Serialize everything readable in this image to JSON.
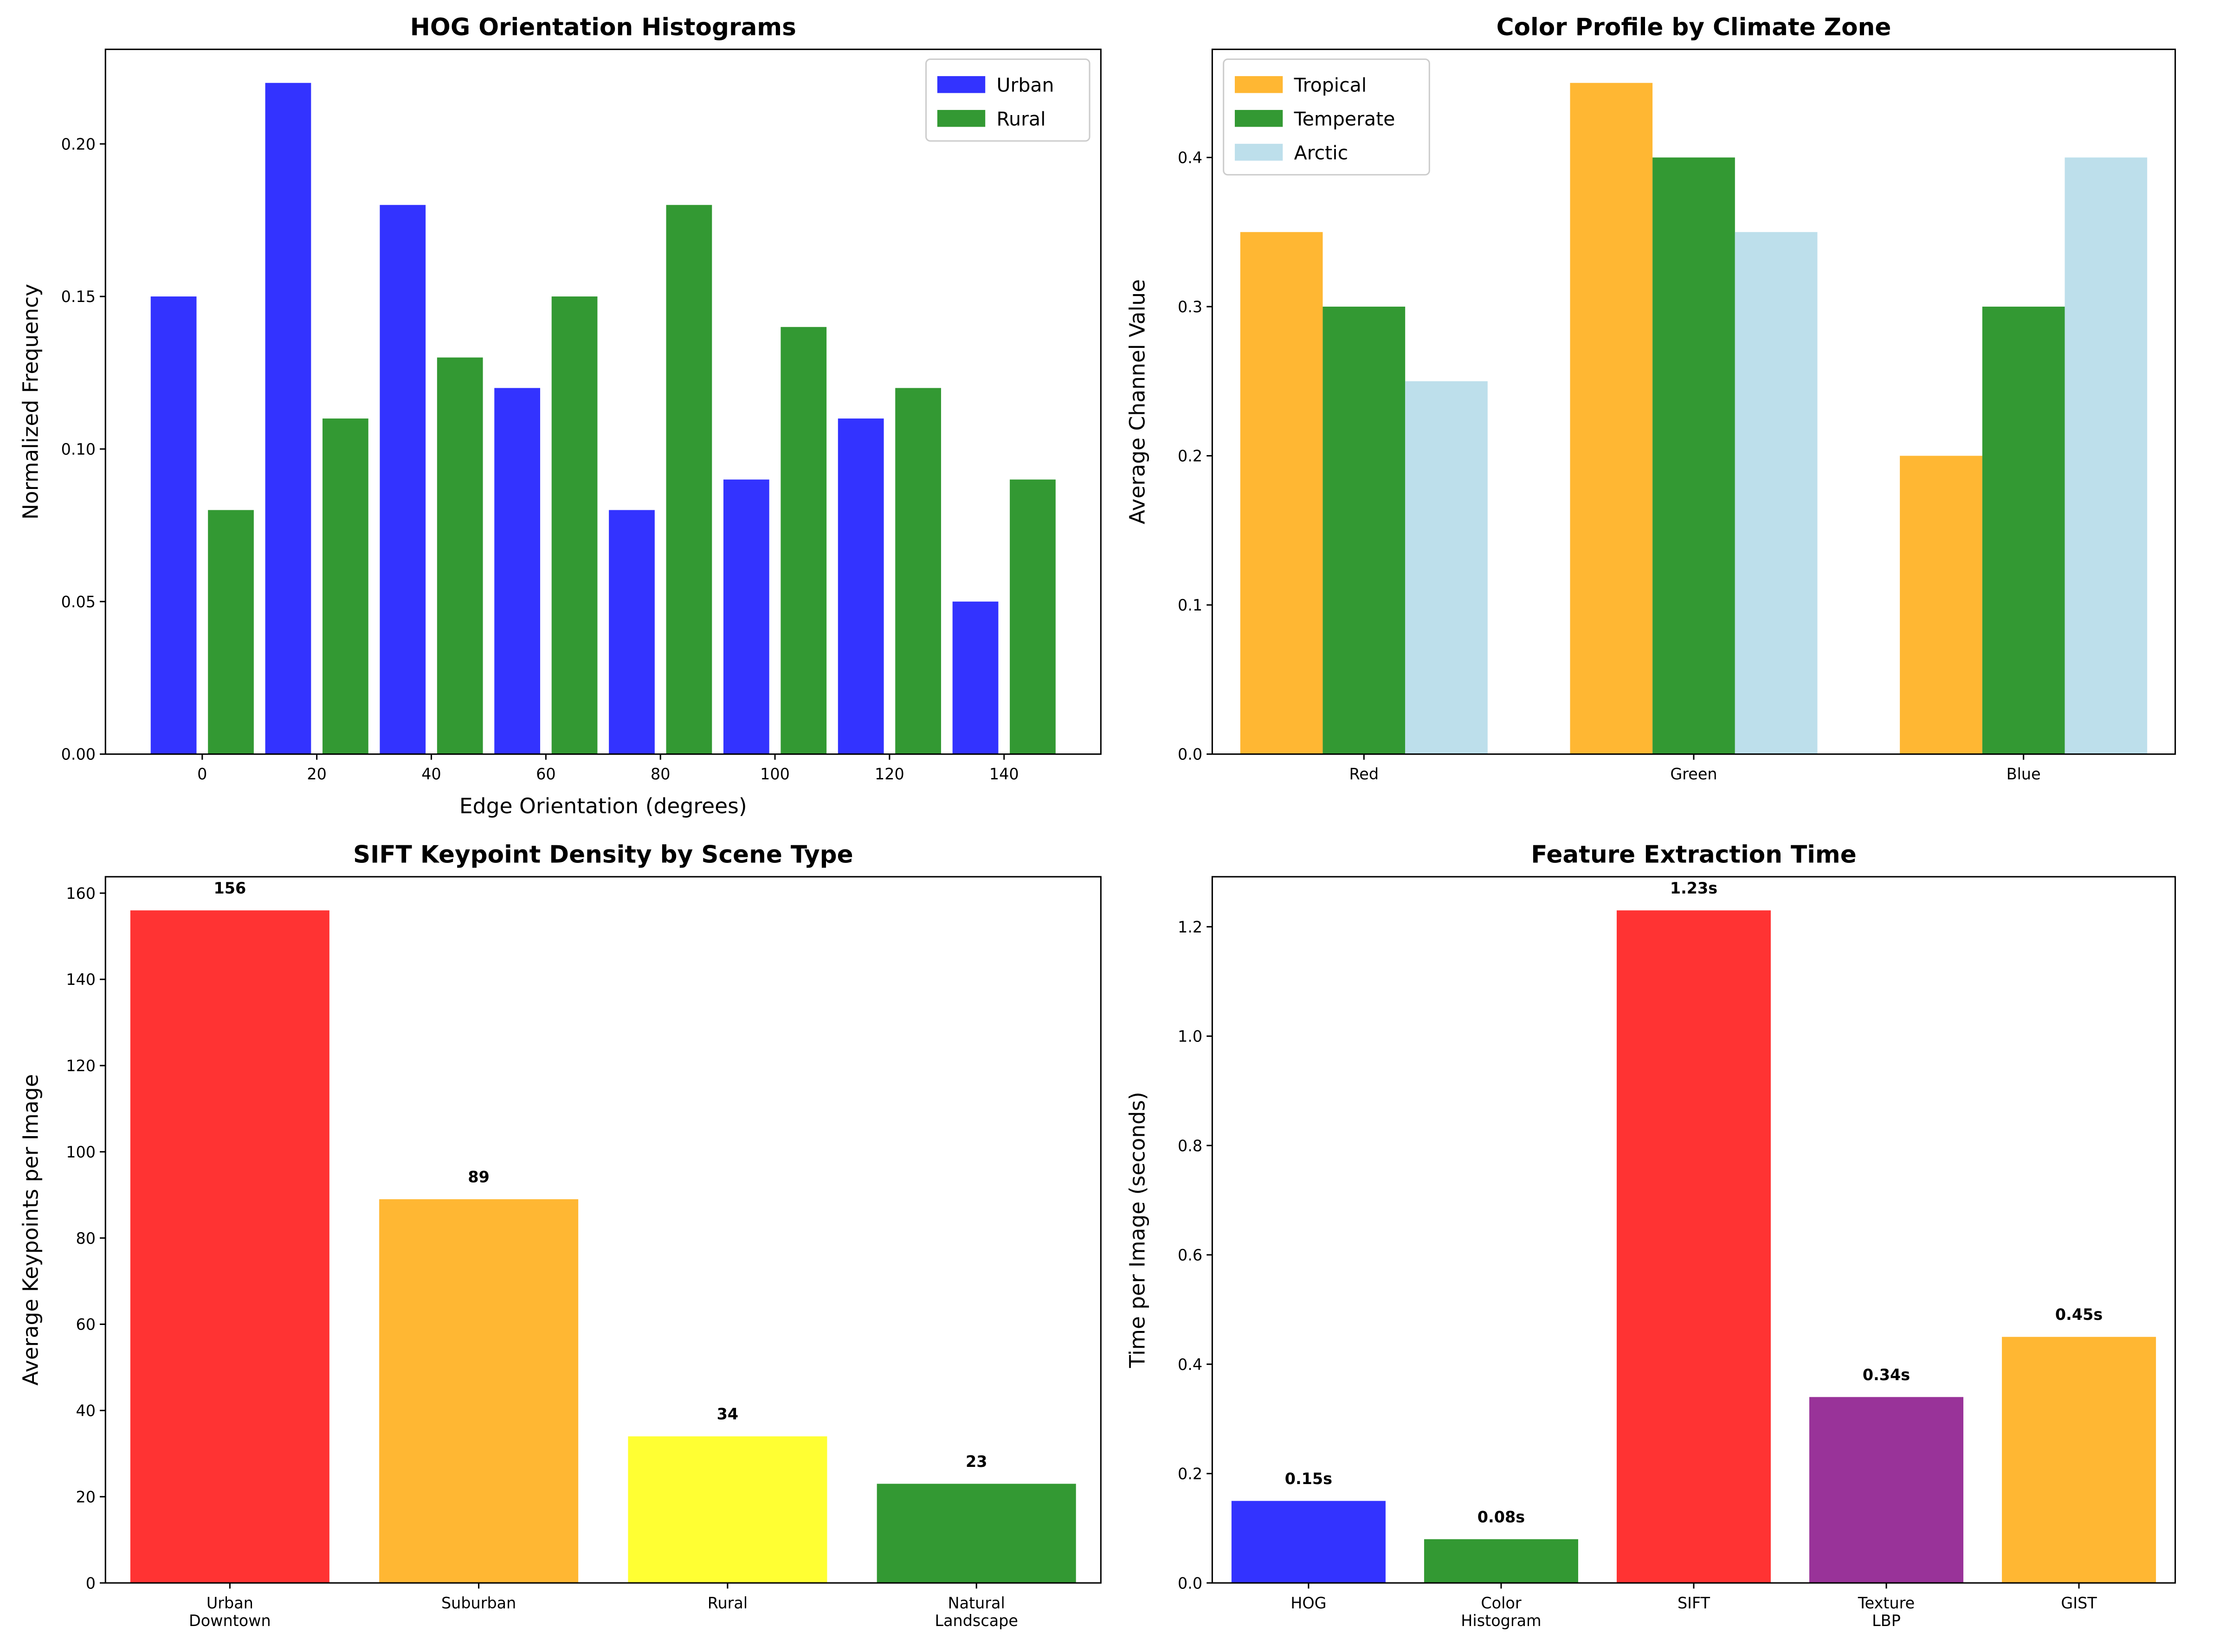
{
  "chart_data": [
    {
      "type": "bar",
      "title": "HOG Orientation Histograms",
      "xlabel": "Edge Orientation (degrees)",
      "ylabel": "Normalized Frequency",
      "x": [
        0,
        20,
        40,
        60,
        80,
        100,
        120,
        140
      ],
      "series": [
        {
          "name": "Urban",
          "color": "#3333ff",
          "values": [
            0.15,
            0.22,
            0.18,
            0.12,
            0.08,
            0.09,
            0.11,
            0.05
          ]
        },
        {
          "name": "Rural",
          "color": "#339933",
          "values": [
            0.08,
            0.11,
            0.13,
            0.15,
            0.18,
            0.14,
            0.12,
            0.09
          ]
        }
      ],
      "xlim": [
        -16.9,
        156.9
      ],
      "xticks": [
        0,
        20,
        40,
        60,
        80,
        100,
        120,
        140
      ],
      "ylim": [
        0,
        0.231
      ],
      "yticks": [
        {
          "value": 0,
          "label": "0.00"
        },
        {
          "value": 0.05,
          "label": "0.05"
        },
        {
          "value": 0.1,
          "label": "0.10"
        },
        {
          "value": 0.15,
          "label": "0.15"
        },
        {
          "value": 0.2,
          "label": "0.20"
        }
      ],
      "legend": "upper right"
    },
    {
      "type": "bar",
      "title": "Color Profile by Climate Zone",
      "ylabel": "Average Channel Value",
      "categories": [
        "Red",
        "Green",
        "Blue"
      ],
      "series": [
        {
          "name": "Tropical",
          "color": "#ffb733",
          "values": [
            0.35,
            0.45,
            0.2
          ]
        },
        {
          "name": "Temperate",
          "color": "#339933",
          "values": [
            0.3,
            0.4,
            0.3
          ]
        },
        {
          "name": "Arctic",
          "color": "#bddfeb",
          "values": [
            0.25,
            0.35,
            0.4
          ]
        }
      ],
      "ylim": [
        0,
        0.4725
      ],
      "yticks": [
        {
          "value": 0,
          "label": "0.0"
        },
        0.1,
        0.2,
        0.3,
        0.4
      ],
      "legend": "upper left"
    },
    {
      "type": "bar",
      "title": "SIFT Keypoint Density by Scene Type",
      "ylabel": "Average Keypoints per Image",
      "categories": [
        "Urban\nDowntown",
        "Suburban",
        "Rural",
        "Natural\nLandscape"
      ],
      "values": [
        156,
        89,
        34,
        23
      ],
      "colors": [
        "#ff3333",
        "#ffb733",
        "#ffff33",
        "#339933"
      ],
      "ylim": [
        0,
        163.8
      ],
      "yticks": [
        0,
        20,
        40,
        60,
        80,
        100,
        120,
        140,
        160
      ],
      "bar_labels": true
    },
    {
      "type": "bar",
      "title": "Feature Extraction Time",
      "ylabel": "Time per Image (seconds)",
      "categories": [
        "HOG",
        "Color\nHistogram",
        "SIFT",
        "Texture\nLBP",
        "GIST"
      ],
      "values": [
        0.15,
        0.08,
        1.23,
        0.34,
        0.45
      ],
      "value_labels": [
        "0.15s",
        "0.08s",
        "1.23s",
        "0.34s",
        "0.45s"
      ],
      "colors": [
        "#3333ff",
        "#339933",
        "#ff3333",
        "#993399",
        "#ffb733"
      ],
      "ylim": [
        0,
        1.2915
      ],
      "yticks": [
        {
          "value": 0,
          "label": "0.0"
        },
        0.2,
        0.4,
        0.6,
        0.8,
        {
          "value": 1,
          "label": "1.0"
        },
        1.2
      ],
      "bar_labels": true
    }
  ]
}
